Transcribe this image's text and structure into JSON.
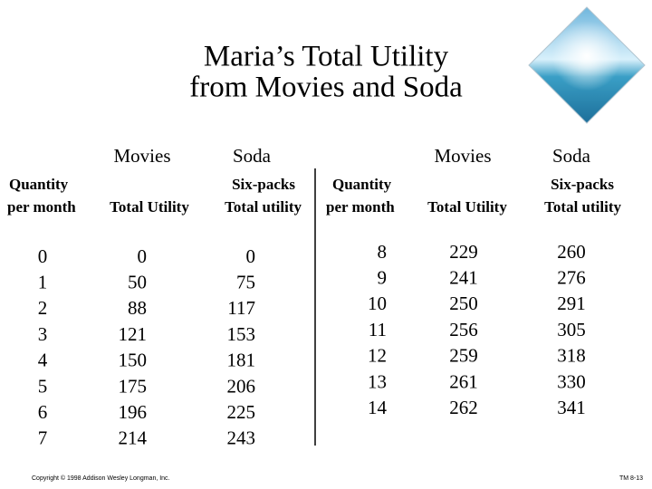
{
  "title": [
    "Maria’s Total Utility",
    "from Movies and Soda"
  ],
  "tables": [
    {
      "groups": [
        "Movies",
        "Soda"
      ],
      "headers": [
        [
          "Quantity",
          "per month"
        ],
        [
          "Total Utility"
        ],
        [
          "Six-packs",
          "Total utility"
        ]
      ],
      "rows": [
        [
          0,
          0,
          0
        ],
        [
          1,
          50,
          75
        ],
        [
          2,
          88,
          117
        ],
        [
          3,
          121,
          153
        ],
        [
          4,
          150,
          181
        ],
        [
          5,
          175,
          206
        ],
        [
          6,
          196,
          225
        ],
        [
          7,
          214,
          243
        ]
      ]
    },
    {
      "groups": [
        "Movies",
        "Soda"
      ],
      "headers": [
        [
          "Quantity",
          "per month"
        ],
        [
          "Total Utility"
        ],
        [
          "Six-packs",
          "Total utility"
        ]
      ],
      "rows": [
        [
          8,
          229,
          260
        ],
        [
          9,
          241,
          276
        ],
        [
          10,
          250,
          291
        ],
        [
          11,
          256,
          305
        ],
        [
          12,
          259,
          318
        ],
        [
          13,
          261,
          330
        ],
        [
          14,
          262,
          341
        ]
      ]
    }
  ],
  "footer": {
    "copyright": "Copyright © 1998 Addison Wesley Longman, Inc.",
    "code": "TM 8-13"
  }
}
